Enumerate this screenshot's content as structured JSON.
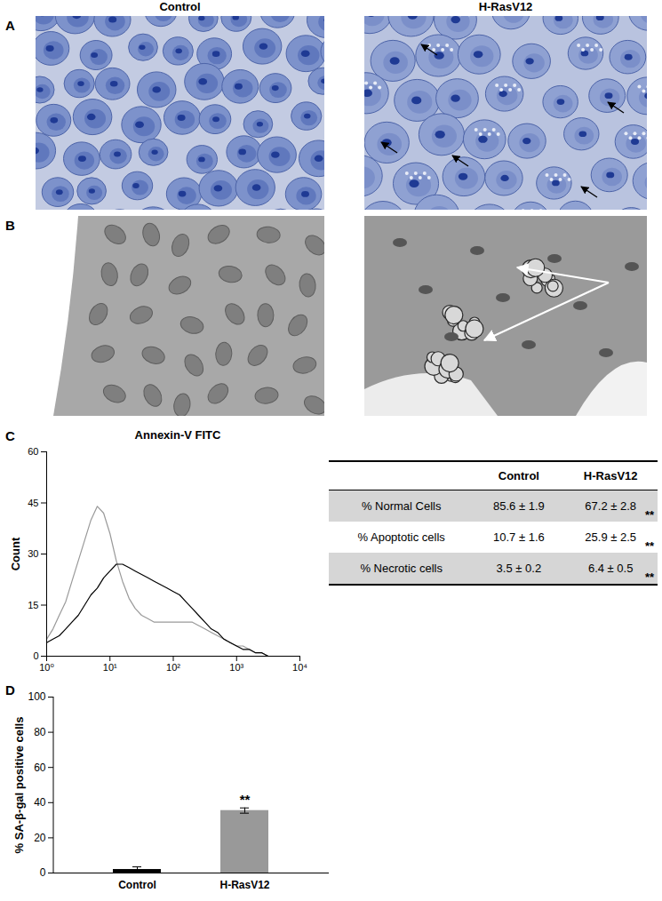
{
  "panel_labels": [
    "A",
    "B",
    "C",
    "D"
  ],
  "column_headers": [
    "Control",
    "H-RasV12"
  ],
  "chart_data": [
    {
      "type": "line",
      "title": "Annexin-V FITC",
      "y_label": "Count",
      "log": "x",
      "x": [
        1,
        1.26,
        1.58,
        2,
        2.51,
        3.16,
        3.98,
        5.01,
        6.31,
        7.94,
        10,
        12.6,
        15.8,
        20,
        25.1,
        31.6,
        39.8,
        50.1,
        63.1,
        79.4,
        100,
        126,
        158,
        200,
        251,
        316,
        398,
        501,
        631,
        794,
        1000,
        1260,
        1580,
        2000,
        2510,
        3160,
        3980,
        5010,
        6310,
        7940,
        10000
      ],
      "xlim": [
        1,
        10000
      ],
      "xticks": [
        {
          "value": 1,
          "label": "10⁰"
        },
        {
          "value": 10,
          "label": "10¹"
        },
        {
          "value": 100,
          "label": "10²"
        },
        {
          "value": 1000,
          "label": "10³"
        },
        {
          "value": 10000,
          "label": "10⁴"
        }
      ],
      "ylim": [
        0,
        60
      ],
      "yticks": [
        0,
        15,
        30,
        45,
        60
      ],
      "series": [
        {
          "color": "#999999",
          "values": [
            5,
            8,
            12,
            16,
            22,
            28,
            34,
            40,
            44,
            42,
            36,
            28,
            22,
            17,
            14,
            12,
            11,
            10,
            10,
            10,
            10,
            10,
            10,
            10,
            9,
            8,
            7,
            6,
            5,
            4,
            3,
            3,
            2,
            1,
            1,
            0,
            0,
            0,
            0,
            0,
            0
          ]
        },
        {
          "color": "#000000",
          "values": [
            4,
            5,
            6,
            8,
            10,
            12,
            15,
            18,
            20,
            23,
            25,
            27,
            27,
            26,
            25,
            24,
            23,
            22,
            21,
            20,
            19,
            18,
            16,
            14,
            12,
            10,
            8,
            7,
            5,
            4,
            3,
            2,
            2,
            1,
            1,
            0,
            0,
            0,
            0,
            0,
            0
          ]
        }
      ]
    },
    {
      "type": "bar",
      "y_label": "% SA-β-gal positive cells",
      "categories": [
        "Control",
        "H-RasV12"
      ],
      "values": [
        2,
        35.5
      ],
      "errors": [
        1.5,
        1.5
      ],
      "colors": [
        "#000000",
        "#999999"
      ],
      "ylim": [
        0,
        100
      ],
      "yticks": [
        0,
        20,
        40,
        60,
        80,
        100
      ],
      "annotations": [
        {
          "category": "H-RasV12",
          "text": "**"
        }
      ]
    }
  ],
  "table": {
    "columns": [
      "Control",
      "H-RasV12"
    ],
    "rows": [
      {
        "label": "% Normal Cells",
        "values": [
          "85.6 ± 1.9",
          "67.2 ± 2.8"
        ],
        "significance": "**"
      },
      {
        "label": "% Apoptotic cells",
        "values": [
          "10.7 ± 1.6",
          "25.9 ± 2.5"
        ],
        "significance": "**"
      },
      {
        "label": "% Necrotic cells",
        "values": [
          "3.5 ± 0.2",
          "6.4 ± 0.5"
        ],
        "significance": "**"
      }
    ]
  }
}
